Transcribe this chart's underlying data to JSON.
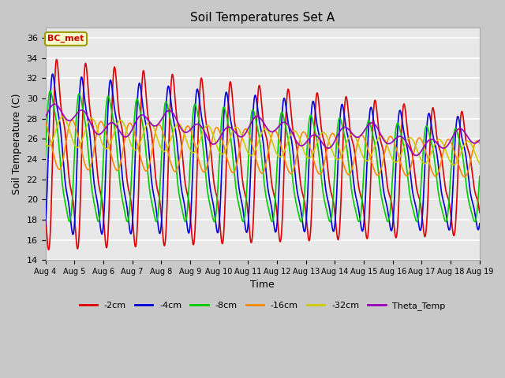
{
  "title": "Soil Temperatures Set A",
  "xlabel": "Time",
  "ylabel": "Soil Temperature (C)",
  "ylim": [
    14,
    37
  ],
  "annotation_text": "BC_met",
  "annotation_color": "#cc0000",
  "annotation_bg": "#ffffcc",
  "annotation_border": "#999900",
  "series_colors": {
    "-2cm": "#dd0000",
    "-4cm": "#0000dd",
    "-8cm": "#00cc00",
    "-16cm": "#ff8800",
    "-32cm": "#cccc00",
    "Theta_Temp": "#9900bb"
  },
  "x_tick_labels": [
    "Aug 4",
    "Aug 5",
    "Aug 6",
    "Aug 7",
    "Aug 8",
    "Aug 9",
    "Aug 10",
    "Aug 11",
    "Aug 12",
    "Aug 13",
    "Aug 14",
    "Aug 15",
    "Aug 16",
    "Aug 17",
    "Aug 18",
    "Aug 19"
  ],
  "plot_bg": "#e8e8e8",
  "grid_color": "#ffffff",
  "line_width": 1.2,
  "figsize": [
    6.4,
    4.8
  ],
  "dpi": 100
}
